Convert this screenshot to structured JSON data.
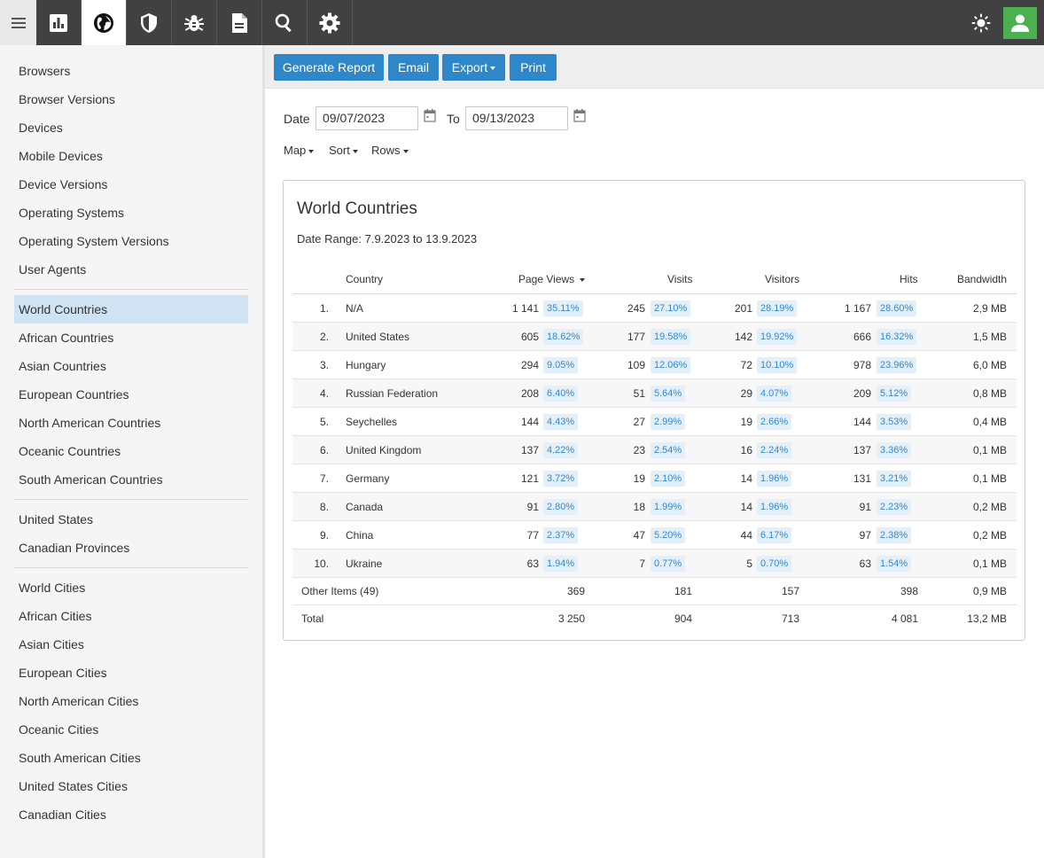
{
  "topbar": {
    "menu_icon": "hamburger-icon",
    "nav": [
      {
        "icon": "bar-chart-icon",
        "active": false
      },
      {
        "icon": "globe-icon",
        "active": true
      },
      {
        "icon": "shield-icon",
        "active": false
      },
      {
        "icon": "bug-icon",
        "active": false
      },
      {
        "icon": "document-icon",
        "active": false
      },
      {
        "icon": "search-icon",
        "active": false
      },
      {
        "icon": "gear-icon",
        "active": false
      }
    ],
    "theme_icon": "sun-icon",
    "user_icon": "user-icon",
    "user_color": "#4caf50"
  },
  "sidebar": {
    "group1": [
      "Browsers",
      "Browser Versions",
      "Devices",
      "Mobile Devices",
      "Device Versions",
      "Operating Systems",
      "Operating System Versions",
      "User Agents"
    ],
    "group2": [
      "World Countries",
      "African Countries",
      "Asian Countries",
      "European Countries",
      "North American Countries",
      "Oceanic Countries",
      "South American Countries"
    ],
    "group3": [
      "United States",
      "Canadian Provinces"
    ],
    "group4": [
      "World Cities",
      "African Cities",
      "Asian Cities",
      "European Cities",
      "North American Cities",
      "Oceanic Cities",
      "South American Cities",
      "United States Cities",
      "Canadian Cities"
    ],
    "active": "World Countries"
  },
  "toolbar": {
    "generate_label": "Generate Report",
    "email_label": "Email",
    "export_label": "Export",
    "print_label": "Print",
    "accent": "#2e87c8"
  },
  "filters": {
    "date_label": "Date",
    "date_from": "09/07/2023",
    "to_label": "To",
    "date_to": "09/13/2023",
    "map_label": "Map",
    "sort_label": "Sort",
    "rows_label": "Rows"
  },
  "report": {
    "title": "World Countries",
    "date_range": "Date Range: 7.9.2023 to 13.9.2023",
    "columns": {
      "country": "Country",
      "page_views": "Page Views",
      "visits": "Visits",
      "visitors": "Visitors",
      "hits": "Hits",
      "bandwidth": "Bandwidth"
    },
    "rows": [
      {
        "rank": "1.",
        "country": "N/A",
        "pv": "1 141",
        "pv_pct": "35.11%",
        "visits": "245",
        "visits_pct": "27.10%",
        "visitors": "201",
        "visitors_pct": "28.19%",
        "hits": "1 167",
        "hits_pct": "28.60%",
        "bw": "2,9 MB"
      },
      {
        "rank": "2.",
        "country": "United States",
        "pv": "605",
        "pv_pct": "18.62%",
        "visits": "177",
        "visits_pct": "19.58%",
        "visitors": "142",
        "visitors_pct": "19.92%",
        "hits": "666",
        "hits_pct": "16.32%",
        "bw": "1,5 MB"
      },
      {
        "rank": "3.",
        "country": "Hungary",
        "pv": "294",
        "pv_pct": "9.05%",
        "visits": "109",
        "visits_pct": "12.06%",
        "visitors": "72",
        "visitors_pct": "10.10%",
        "hits": "978",
        "hits_pct": "23.96%",
        "bw": "6,0 MB"
      },
      {
        "rank": "4.",
        "country": "Russian Federation",
        "pv": "208",
        "pv_pct": "6.40%",
        "visits": "51",
        "visits_pct": "5.64%",
        "visitors": "29",
        "visitors_pct": "4.07%",
        "hits": "209",
        "hits_pct": "5.12%",
        "bw": "0,8 MB"
      },
      {
        "rank": "5.",
        "country": "Seychelles",
        "pv": "144",
        "pv_pct": "4.43%",
        "visits": "27",
        "visits_pct": "2.99%",
        "visitors": "19",
        "visitors_pct": "2.66%",
        "hits": "144",
        "hits_pct": "3.53%",
        "bw": "0,4 MB"
      },
      {
        "rank": "6.",
        "country": "United Kingdom",
        "pv": "137",
        "pv_pct": "4.22%",
        "visits": "23",
        "visits_pct": "2.54%",
        "visitors": "16",
        "visitors_pct": "2.24%",
        "hits": "137",
        "hits_pct": "3.36%",
        "bw": "0,1 MB"
      },
      {
        "rank": "7.",
        "country": "Germany",
        "pv": "121",
        "pv_pct": "3.72%",
        "visits": "19",
        "visits_pct": "2.10%",
        "visitors": "14",
        "visitors_pct": "1.96%",
        "hits": "131",
        "hits_pct": "3.21%",
        "bw": "0,1 MB"
      },
      {
        "rank": "8.",
        "country": "Canada",
        "pv": "91",
        "pv_pct": "2.80%",
        "visits": "18",
        "visits_pct": "1.99%",
        "visitors": "14",
        "visitors_pct": "1.96%",
        "hits": "91",
        "hits_pct": "2.23%",
        "bw": "0,2 MB"
      },
      {
        "rank": "9.",
        "country": "China",
        "pv": "77",
        "pv_pct": "2.37%",
        "visits": "47",
        "visits_pct": "5.20%",
        "visitors": "44",
        "visitors_pct": "6.17%",
        "hits": "97",
        "hits_pct": "2.38%",
        "bw": "0,2 MB"
      },
      {
        "rank": "10.",
        "country": "Ukraine",
        "pv": "63",
        "pv_pct": "1.94%",
        "visits": "7",
        "visits_pct": "0.77%",
        "visitors": "5",
        "visitors_pct": "0.70%",
        "hits": "63",
        "hits_pct": "1.54%",
        "bw": "0,1 MB"
      }
    ],
    "other": {
      "label": "Other Items (49)",
      "pv": "369",
      "visits": "181",
      "visitors": "157",
      "hits": "398",
      "bw": "0,9 MB"
    },
    "total": {
      "label": "Total",
      "pv": "3 250",
      "visits": "904",
      "visitors": "713",
      "hits": "4 081",
      "bw": "13,2 MB"
    }
  }
}
